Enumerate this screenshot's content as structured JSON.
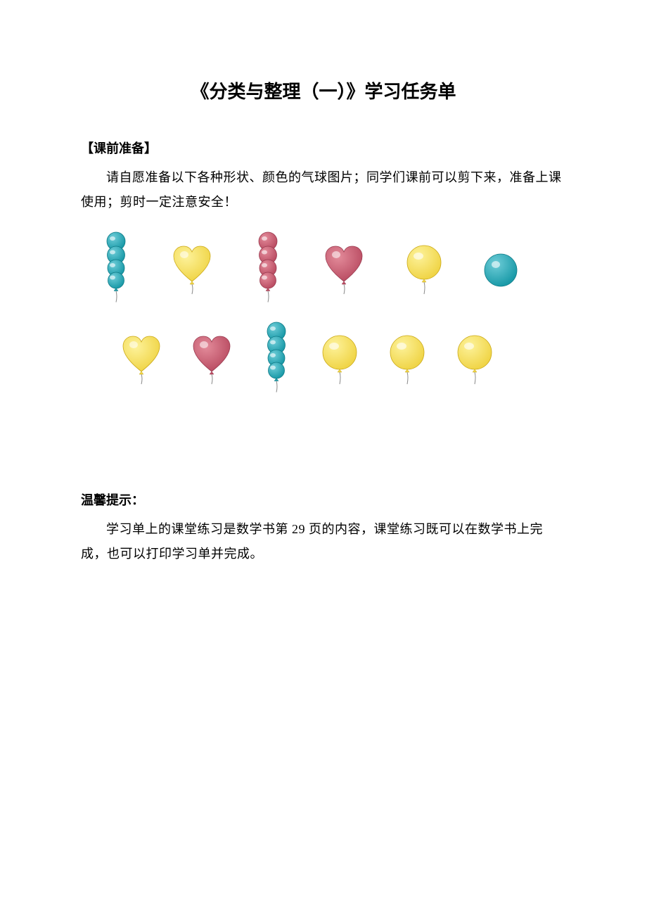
{
  "title": "《分类与整理（一）》学习任务单",
  "prep": {
    "heading": "【课前准备】",
    "text": "请自愿准备以下各种形状、颜色的气球图片；同学们课前可以剪下来，准备上课使用；剪时一定注意安全！"
  },
  "tip": {
    "heading": "温馨提示：",
    "text": "学习单上的课堂练习是数学书第 29 页的内容，课堂练习既可以在数学书上完成，也可以打印学习单并完成。"
  },
  "colors": {
    "teal_light": "#6ecdd8",
    "teal_dark": "#1a9aa8",
    "teal_stroke": "#0e7a86",
    "yellow_light": "#fdf29a",
    "yellow_dark": "#f0d548",
    "yellow_stroke": "#caa815",
    "red_light": "#e38b9a",
    "red_dark": "#ba4d63",
    "red_stroke": "#9a3a4f",
    "string": "#888888"
  },
  "balloons": {
    "row1": [
      {
        "shape": "caterpillar",
        "palette": "teal"
      },
      {
        "shape": "heart",
        "palette": "yellow"
      },
      {
        "shape": "caterpillar",
        "palette": "red"
      },
      {
        "shape": "heart",
        "palette": "red"
      },
      {
        "shape": "round",
        "palette": "yellow"
      },
      {
        "shape": "plaincircle",
        "palette": "teal"
      }
    ],
    "row2": [
      {
        "shape": "heart",
        "palette": "yellow"
      },
      {
        "shape": "heart",
        "palette": "red"
      },
      {
        "shape": "caterpillar",
        "palette": "teal"
      },
      {
        "shape": "round",
        "palette": "yellow"
      },
      {
        "shape": "round",
        "palette": "yellow"
      },
      {
        "shape": "round",
        "palette": "yellow"
      }
    ]
  }
}
